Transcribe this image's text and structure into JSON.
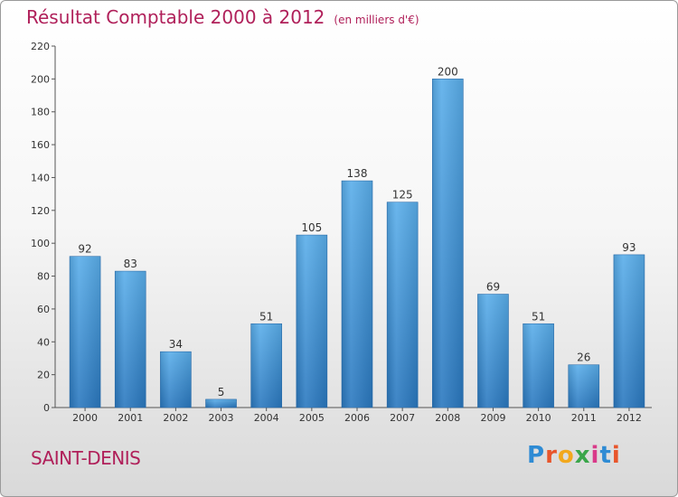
{
  "chart_data": {
    "type": "bar",
    "title": "Résultat Comptable 2000 à 2012",
    "unit": "(en milliers d'€)",
    "categories": [
      "2000",
      "2001",
      "2002",
      "2003",
      "2004",
      "2005",
      "2006",
      "2007",
      "2008",
      "2009",
      "2010",
      "2011",
      "2012"
    ],
    "values": [
      92,
      83,
      34,
      5,
      51,
      105,
      138,
      125,
      200,
      69,
      51,
      26,
      93
    ],
    "ylim": [
      0,
      220
    ],
    "yticks": [
      0,
      20,
      40,
      60,
      80,
      100,
      120,
      140,
      160,
      180,
      200,
      220
    ],
    "grid": false,
    "bar_color": "#3d8fd6"
  },
  "footer": {
    "place": "SAINT-DENIS",
    "logo": "Proxiti"
  }
}
